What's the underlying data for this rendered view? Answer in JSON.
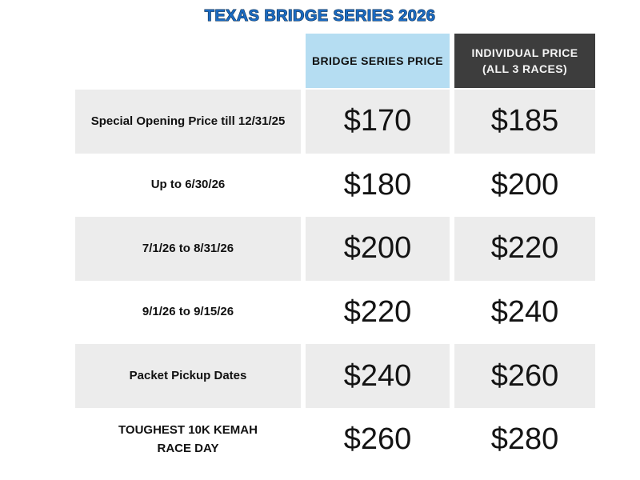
{
  "title": {
    "text": "TEXAS BRIDGE SERIES 2026"
  },
  "table": {
    "header": {
      "bridge": "BRIDGE SERIES PRICE",
      "individual": "INDIVIDUAL PRICE\n(ALL 3 RACES)"
    },
    "rows": [
      {
        "label": "Special Opening Price till 12/31/25",
        "bridge": "$170",
        "individual": "$185"
      },
      {
        "label": "Up to 6/30/26",
        "bridge": "$180",
        "individual": "$200"
      },
      {
        "label": "7/1/26 to 8/31/26",
        "bridge": "$200",
        "individual": "$220"
      },
      {
        "label": "9/1/26 to 9/15/26",
        "bridge": "$220",
        "individual": "$240"
      },
      {
        "label": "Packet Pickup Dates",
        "bridge": "$240",
        "individual": "$260"
      },
      {
        "label": "TOUGHEST 10K KEMAH\nRACE DAY",
        "bridge": "$260",
        "individual": "$280"
      }
    ]
  },
  "chart_data": {
    "type": "table",
    "title": "TEXAS BRIDGE SERIES 2026",
    "columns": [
      "",
      "BRIDGE SERIES PRICE",
      "INDIVIDUAL PRICE (ALL 3 RACES)"
    ],
    "categories": [
      "Special Opening Price till 12/31/25",
      "Up to 6/30/26",
      "7/1/26 to 8/31/26",
      "9/1/26 to 9/15/26",
      "Packet Pickup Dates",
      "TOUGHEST 10K KEMAH RACE DAY"
    ],
    "series": [
      {
        "name": "BRIDGE SERIES PRICE",
        "values": [
          170,
          180,
          200,
          220,
          240,
          260
        ]
      },
      {
        "name": "INDIVIDUAL PRICE (ALL 3 RACES)",
        "values": [
          185,
          200,
          220,
          240,
          260,
          280
        ]
      }
    ],
    "unit": "$",
    "row_shading": "alternating (rows 1,3,5 shaded gray)"
  },
  "colors": {
    "page_bg": "#ffffff",
    "title_text": "#1b6ac1",
    "title_outline": "#0c2d4d",
    "header_blue_bg": "#b5ddf2",
    "header_dark_bg": "#3d3d3d",
    "header_dark_text": "#f5f5f5",
    "row_shade_bg": "#ececec",
    "body_text": "#111111"
  }
}
